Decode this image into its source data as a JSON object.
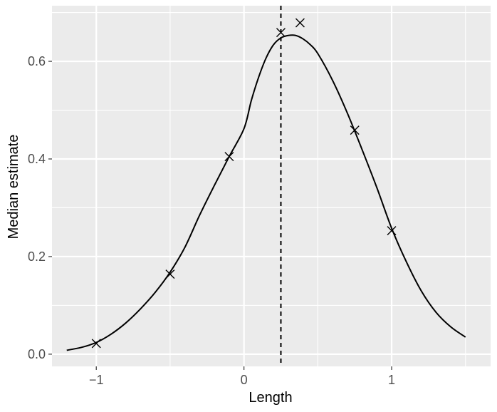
{
  "chart_data": {
    "type": "line",
    "xlabel": "Length",
    "ylabel": "Median estimate",
    "xlim": [
      -1.3,
      1.67
    ],
    "ylim": [
      -0.025,
      0.714
    ],
    "x_ticks": [
      {
        "value": -1,
        "label": "−1"
      },
      {
        "value": 0,
        "label": "0"
      },
      {
        "value": 1,
        "label": "1"
      }
    ],
    "x_minor_ticks": [
      -0.5,
      0.5,
      1.5
    ],
    "y_ticks": [
      {
        "value": 0.0,
        "label": "0.0"
      },
      {
        "value": 0.2,
        "label": "0.2"
      },
      {
        "value": 0.4,
        "label": "0.4"
      },
      {
        "value": 0.6,
        "label": "0.6"
      }
    ],
    "y_minor_ticks": [
      0.1,
      0.3,
      0.5,
      0.7
    ],
    "grid": true,
    "background": "#ebebeb",
    "grid_color": "#ffffff",
    "curve": {
      "x": [
        -1.2,
        -1.1,
        -1.0,
        -0.9,
        -0.8,
        -0.7,
        -0.6,
        -0.5,
        -0.4,
        -0.3,
        -0.2,
        -0.1,
        0.0,
        0.05,
        0.1,
        0.15,
        0.2,
        0.25,
        0.3,
        0.35,
        0.4,
        0.45,
        0.5,
        0.6,
        0.7,
        0.8,
        0.9,
        1.0,
        1.1,
        1.2,
        1.3,
        1.4,
        1.5
      ],
      "y": [
        0.008,
        0.014,
        0.024,
        0.041,
        0.064,
        0.093,
        0.127,
        0.168,
        0.219,
        0.285,
        0.346,
        0.405,
        0.462,
        0.52,
        0.568,
        0.607,
        0.634,
        0.648,
        0.653,
        0.653,
        0.646,
        0.634,
        0.616,
        0.561,
        0.494,
        0.419,
        0.341,
        0.258,
        0.189,
        0.13,
        0.086,
        0.056,
        0.035
      ]
    },
    "points": {
      "x": [
        -1.0,
        -0.5,
        -0.1,
        0.25,
        0.38,
        0.75,
        1.0
      ],
      "y": [
        0.022,
        0.164,
        0.405,
        0.659,
        0.679,
        0.459,
        0.253
      ]
    },
    "vline": {
      "x": 0.25,
      "style": "dashed"
    }
  }
}
